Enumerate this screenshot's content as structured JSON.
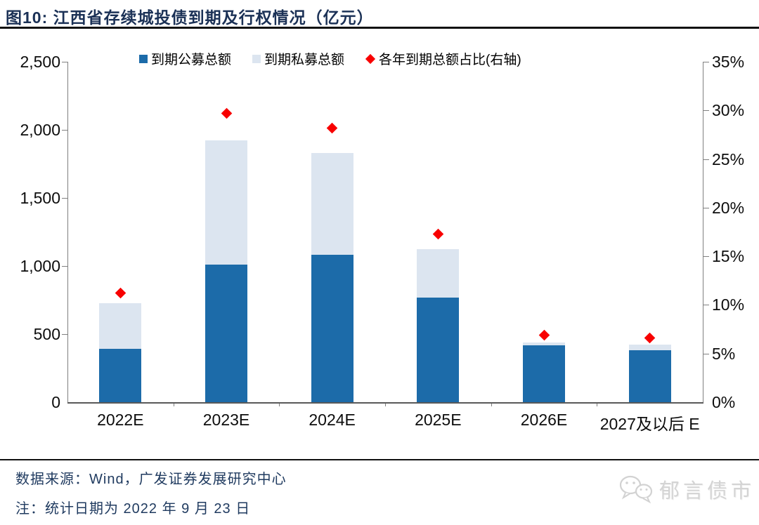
{
  "header": {
    "title": "图10:  江西省存续城投债到期及行权情况（亿元）"
  },
  "chart_data": {
    "type": "bar",
    "title": "江西省存续城投债到期及行权情况（亿元）",
    "unit_left": "亿元",
    "unit_right": "%",
    "grid": false,
    "legend_position": "top",
    "categories": [
      "2022E",
      "2023E",
      "2024E",
      "2025E",
      "2026E",
      "2027及以后 E"
    ],
    "series": [
      {
        "name": "到期公募总额",
        "type": "bar",
        "stack": "total",
        "axis": "left",
        "color": "#1C6BA9",
        "values": [
          390,
          1010,
          1080,
          770,
          415,
          380
        ]
      },
      {
        "name": "到期私募总额",
        "type": "bar",
        "stack": "total",
        "axis": "left",
        "color": "#DCE5F0",
        "values": [
          335,
          915,
          750,
          355,
          25,
          45
        ]
      },
      {
        "name": "各年到期总额占比(右轴)",
        "type": "scatter",
        "marker": "diamond",
        "axis": "right",
        "color": "#F80000",
        "values": [
          11.2,
          29.7,
          28.2,
          17.3,
          6.9,
          6.6
        ]
      }
    ],
    "stacked_totals": [
      725,
      1925,
      1830,
      1125,
      440,
      425
    ],
    "left_axis": {
      "min": 0,
      "max": 2500,
      "tick_step": 500,
      "tick_labels": [
        "0",
        "500",
        "1,000",
        "1,500",
        "2,000",
        "2,500"
      ]
    },
    "right_axis": {
      "min": 0,
      "max": 35,
      "tick_step": 5,
      "tick_labels": [
        "0%",
        "5%",
        "10%",
        "15%",
        "20%",
        "25%",
        "30%",
        "35%"
      ]
    }
  },
  "footer": {
    "source": "数据来源：Wind，广发证券发展研究中心",
    "note": "注：统计日期为 2022 年 9 月 23 日"
  },
  "watermark": {
    "icon": "wechat-icon",
    "label": "郁言债市"
  },
  "colors": {
    "title_text": "#1B3156",
    "bar_public": "#1C6BA9",
    "bar_private": "#DCE5F0",
    "ratio_diamond": "#F80000",
    "axis_line": "#7F7F7F",
    "baseline": "#595959",
    "divider": "#111111",
    "footer_text": "#1F3A5F",
    "watermark_text": "#D4D4D4"
  }
}
